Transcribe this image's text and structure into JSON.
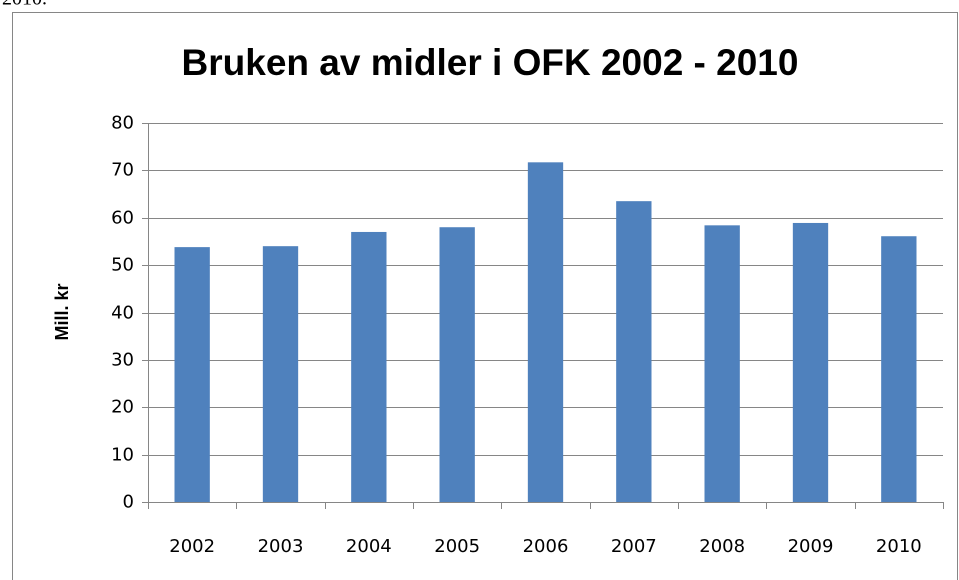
{
  "caption_fragment": "2010.",
  "chart_data": {
    "type": "bar",
    "title": "Bruken av midler i OFK 2002 - 2010",
    "y_label": "Mill. kr",
    "categories": [
      "2002",
      "2003",
      "2004",
      "2005",
      "2006",
      "2007",
      "2008",
      "2009",
      "2010"
    ],
    "values": [
      53.8,
      54,
      57,
      58,
      71.7,
      63.5,
      58.4,
      58.9,
      56.1
    ],
    "color": "#4f81bd",
    "ylim": [
      0,
      80
    ],
    "yticks": [
      0,
      10,
      20,
      30,
      40,
      50,
      60,
      70,
      80
    ],
    "grid": true
  }
}
